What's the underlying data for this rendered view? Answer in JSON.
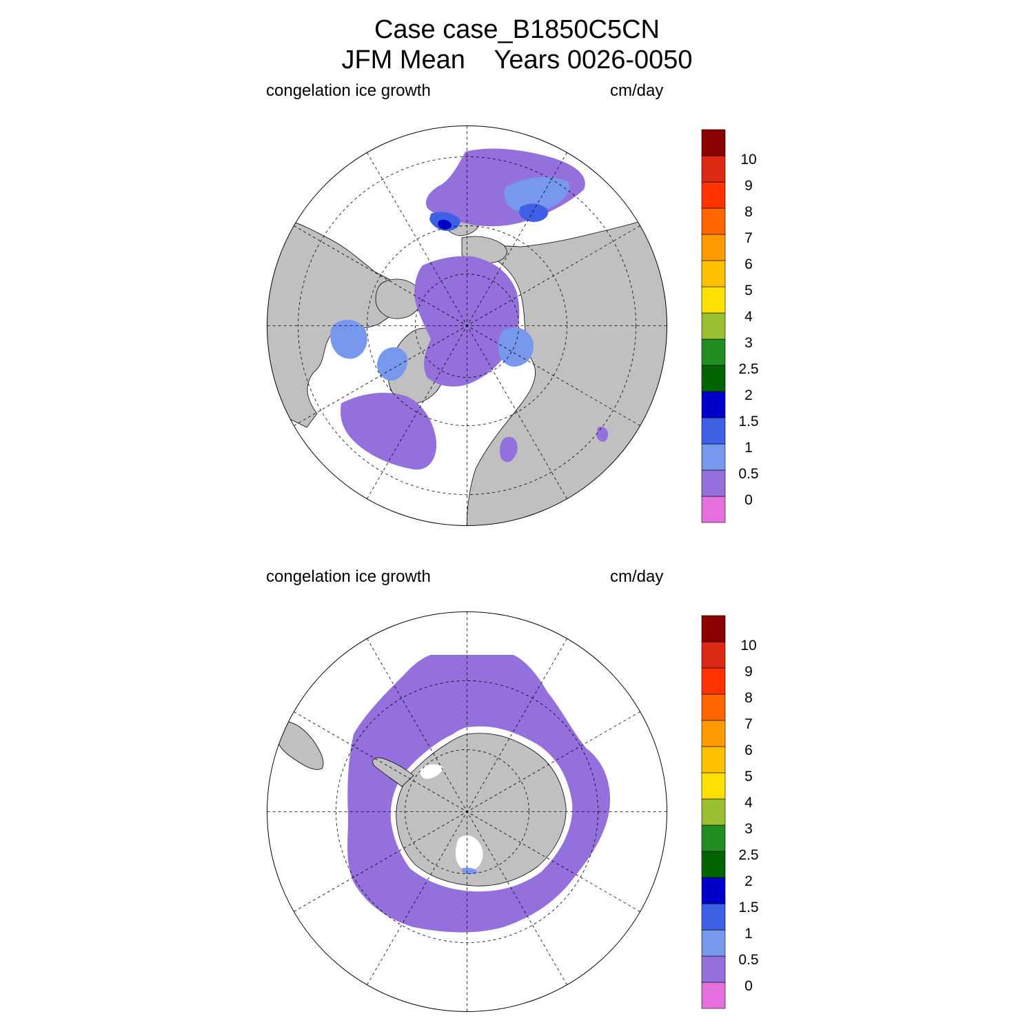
{
  "header": {
    "title_line1": "Case case_B1850C5CN",
    "title_line2": "JFM Mean    Years 0026-0050"
  },
  "panels": [
    {
      "id": "north",
      "left_label": "congelation ice growth",
      "right_label": "cm/day",
      "hemisphere": "NH"
    },
    {
      "id": "south",
      "left_label": "congelation ice growth",
      "right_label": "cm/day",
      "hemisphere": "SH"
    }
  ],
  "colorbar": {
    "labels": [
      "0",
      "0.5",
      "1",
      "1.5",
      "2",
      "2.5",
      "3",
      "4",
      "5",
      "6",
      "7",
      "8",
      "9",
      "10"
    ],
    "colors": [
      "#e56fdc",
      "#9370db",
      "#7898ee",
      "#3e60e5",
      "#0000c8",
      "#006400",
      "#228b22",
      "#9ac032",
      "#ffe000",
      "#ffc000",
      "#ff9a00",
      "#ff6600",
      "#ff3300",
      "#dc2a14",
      "#8b0000"
    ]
  },
  "colors": {
    "land": "#c0c0c0",
    "ice_low": "#9370db",
    "ice_mid": "#7898ee",
    "ice_high": "#3e60e5",
    "ice_max": "#0000c8",
    "ocean": "#ffffff"
  }
}
